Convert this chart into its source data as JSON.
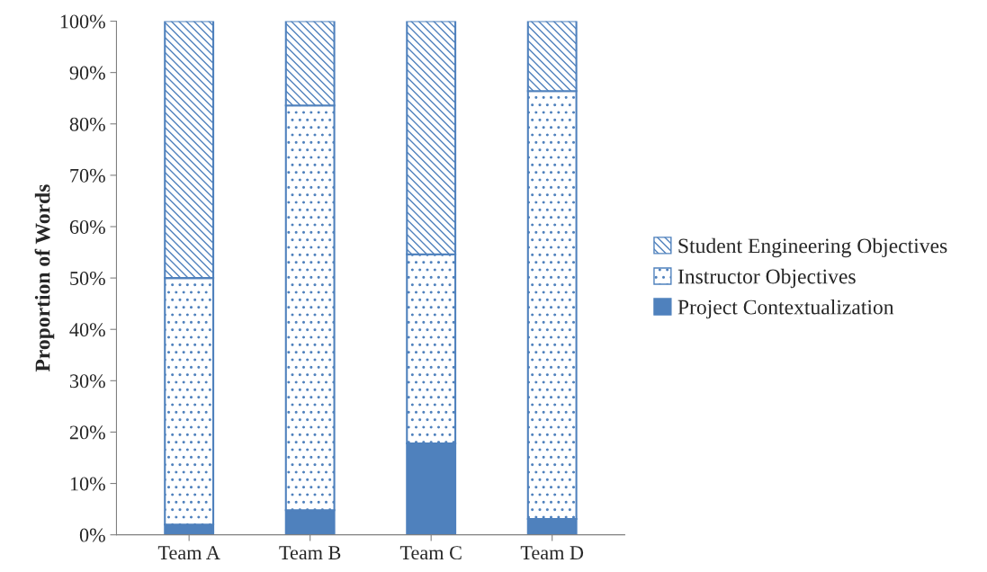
{
  "chart_data": {
    "type": "bar",
    "stacked": true,
    "ylabel": "Proportion of Words",
    "categories": [
      "Team A",
      "Team B",
      "Team C",
      "Team D"
    ],
    "series": [
      {
        "name": "Project Contextualization",
        "color": "#4f81bd",
        "values": [
          2.0,
          4.8,
          17.8,
          3.1
        ]
      },
      {
        "name": "Instructor Objectives",
        "color": "#4f81bd",
        "values": [
          48.0,
          78.8,
          36.8,
          83.3
        ]
      },
      {
        "name": "Student Engineering Objectives",
        "color": "#4f81bd",
        "values": [
          50.0,
          16.4,
          45.4,
          13.6
        ]
      }
    ],
    "ylim": [
      0,
      100
    ],
    "yticks": [
      {
        "value": 0,
        "label": "0%"
      },
      {
        "value": 10,
        "label": "10%"
      },
      {
        "value": 20,
        "label": "20%"
      },
      {
        "value": 30,
        "label": "30%"
      },
      {
        "value": 40,
        "label": "40%"
      },
      {
        "value": 50,
        "label": "50%"
      },
      {
        "value": 60,
        "label": "60%"
      },
      {
        "value": 70,
        "label": "70%"
      },
      {
        "value": 80,
        "label": "80%"
      },
      {
        "value": 90,
        "label": "90%"
      },
      {
        "value": 100,
        "label": "100%"
      }
    ],
    "legend": "right",
    "grid": false
  }
}
